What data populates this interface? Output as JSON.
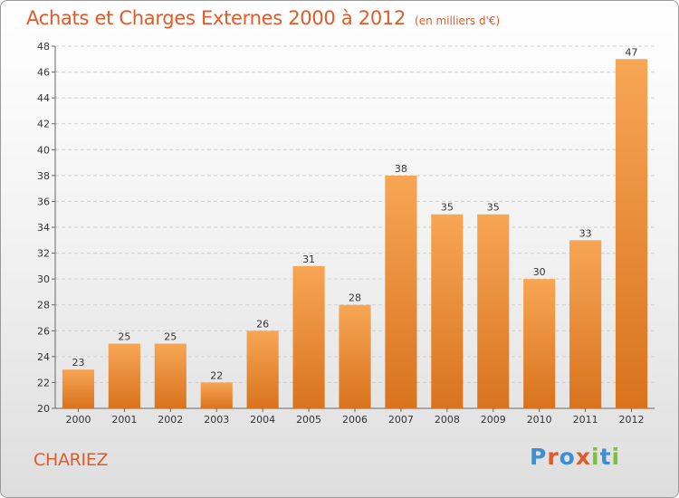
{
  "title": "Achats et Charges Externes 2000 à 2012",
  "unit_label": "(en milliers d'€)",
  "location": "CHARIEZ",
  "logo": {
    "letters": [
      "P",
      "r",
      "o",
      "x",
      "i",
      "t",
      "i"
    ],
    "colors": [
      "#3a8fd6",
      "#e05a2a",
      "#3a8fd6",
      "#e05a2a",
      "#7cbf3c",
      "#3a8fd6",
      "#7cbf3c"
    ]
  },
  "colors": {
    "bar_top": "#f7a655",
    "bar_bottom": "#d9731e",
    "accent": "#e05a2a"
  },
  "chart_data": {
    "type": "bar",
    "categories": [
      "2000",
      "2001",
      "2002",
      "2003",
      "2004",
      "2005",
      "2006",
      "2007",
      "2008",
      "2009",
      "2010",
      "2011",
      "2012"
    ],
    "values": [
      23,
      25,
      25,
      22,
      26,
      31,
      28,
      38,
      35,
      35,
      30,
      33,
      47
    ],
    "ylim": [
      20,
      48
    ],
    "yticks": [
      20,
      22,
      24,
      26,
      28,
      30,
      32,
      34,
      36,
      38,
      40,
      42,
      44,
      46,
      48
    ],
    "grid": true,
    "title": "Achats et Charges Externes 2000 à 2012",
    "xlabel": "",
    "ylabel": ""
  }
}
